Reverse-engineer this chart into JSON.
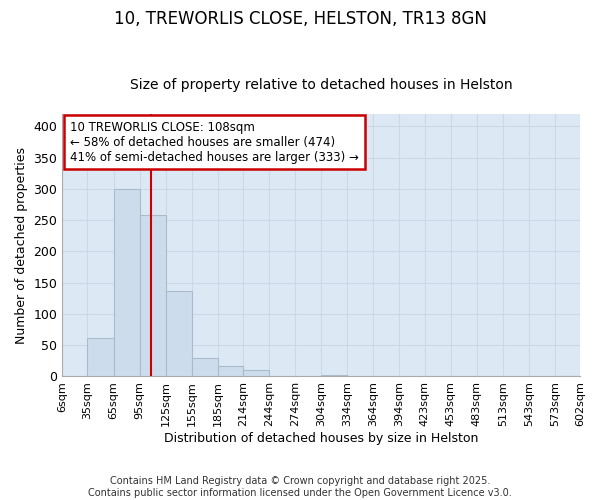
{
  "title": "10, TREWORLIS CLOSE, HELSTON, TR13 8GN",
  "subtitle": "Size of property relative to detached houses in Helston",
  "xlabel": "Distribution of detached houses by size in Helston",
  "ylabel": "Number of detached properties",
  "footer_line1": "Contains HM Land Registry data © Crown copyright and database right 2025.",
  "footer_line2": "Contains public sector information licensed under the Open Government Licence v3.0.",
  "bin_edges": [
    6,
    35,
    65,
    95,
    125,
    155,
    185,
    214,
    244,
    274,
    304,
    334,
    364,
    394,
    423,
    453,
    483,
    513,
    543,
    573,
    602
  ],
  "bar_heights": [
    0,
    62,
    300,
    258,
    136,
    30,
    17,
    11,
    0,
    0,
    3,
    0,
    0,
    0,
    0,
    0,
    0,
    0,
    0,
    1
  ],
  "bar_color": "#ccdcec",
  "bar_edge_color": "#aabccc",
  "property_line_x": 108,
  "property_line_color": "#cc0000",
  "ylim": [
    0,
    420
  ],
  "yticks": [
    0,
    50,
    100,
    150,
    200,
    250,
    300,
    350,
    400
  ],
  "annotation_text_line1": "10 TREWORLIS CLOSE: 108sqm",
  "annotation_text_line2": "← 58% of detached houses are smaller (474)",
  "annotation_text_line3": "41% of semi-detached houses are larger (333) →",
  "annotation_box_color": "#cc0000",
  "annotation_bg_color": "#ffffff",
  "title_fontsize": 12,
  "subtitle_fontsize": 10,
  "tick_label_fontsize": 8,
  "ylabel_fontsize": 9,
  "xlabel_fontsize": 9,
  "annotation_fontsize": 8.5,
  "grid_color": "#ccd8e8",
  "background_color": "#dce8f4",
  "figure_bg_color": "#ffffff"
}
